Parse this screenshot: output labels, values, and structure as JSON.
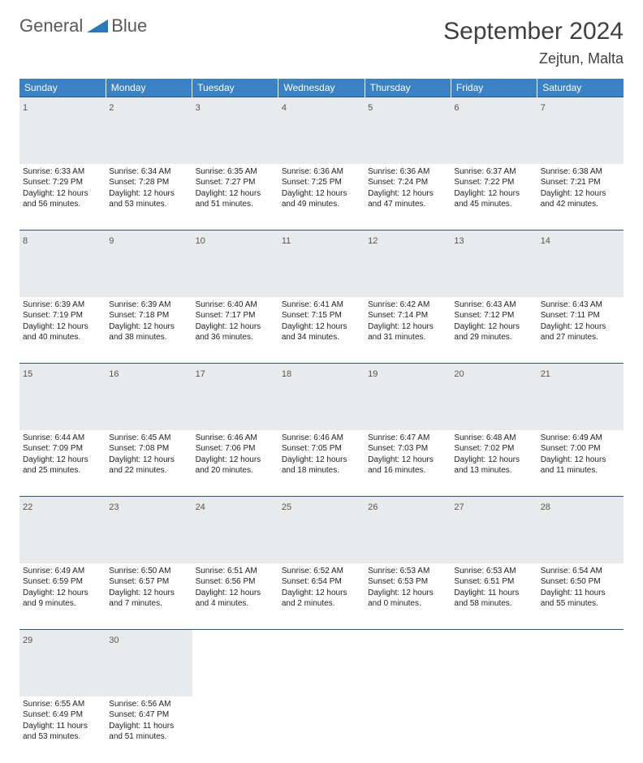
{
  "brand": {
    "name1": "General",
    "name2": "Blue",
    "triangle_color": "#2a7ab9"
  },
  "title": "September 2024",
  "location": "Zejtun, Malta",
  "colors": {
    "header_bg": "#3b82c4",
    "header_text": "#ffffff",
    "daynum_bg": "#e9eaeb",
    "rule": "#2a5a8a",
    "body_text": "#222222",
    "title_text": "#404040"
  },
  "weekdays": [
    "Sunday",
    "Monday",
    "Tuesday",
    "Wednesday",
    "Thursday",
    "Friday",
    "Saturday"
  ],
  "weeks": [
    [
      {
        "n": "1",
        "sunrise": "6:33 AM",
        "sunset": "7:29 PM",
        "dl": "12 hours and 56 minutes."
      },
      {
        "n": "2",
        "sunrise": "6:34 AM",
        "sunset": "7:28 PM",
        "dl": "12 hours and 53 minutes."
      },
      {
        "n": "3",
        "sunrise": "6:35 AM",
        "sunset": "7:27 PM",
        "dl": "12 hours and 51 minutes."
      },
      {
        "n": "4",
        "sunrise": "6:36 AM",
        "sunset": "7:25 PM",
        "dl": "12 hours and 49 minutes."
      },
      {
        "n": "5",
        "sunrise": "6:36 AM",
        "sunset": "7:24 PM",
        "dl": "12 hours and 47 minutes."
      },
      {
        "n": "6",
        "sunrise": "6:37 AM",
        "sunset": "7:22 PM",
        "dl": "12 hours and 45 minutes."
      },
      {
        "n": "7",
        "sunrise": "6:38 AM",
        "sunset": "7:21 PM",
        "dl": "12 hours and 42 minutes."
      }
    ],
    [
      {
        "n": "8",
        "sunrise": "6:39 AM",
        "sunset": "7:19 PM",
        "dl": "12 hours and 40 minutes."
      },
      {
        "n": "9",
        "sunrise": "6:39 AM",
        "sunset": "7:18 PM",
        "dl": "12 hours and 38 minutes."
      },
      {
        "n": "10",
        "sunrise": "6:40 AM",
        "sunset": "7:17 PM",
        "dl": "12 hours and 36 minutes."
      },
      {
        "n": "11",
        "sunrise": "6:41 AM",
        "sunset": "7:15 PM",
        "dl": "12 hours and 34 minutes."
      },
      {
        "n": "12",
        "sunrise": "6:42 AM",
        "sunset": "7:14 PM",
        "dl": "12 hours and 31 minutes."
      },
      {
        "n": "13",
        "sunrise": "6:43 AM",
        "sunset": "7:12 PM",
        "dl": "12 hours and 29 minutes."
      },
      {
        "n": "14",
        "sunrise": "6:43 AM",
        "sunset": "7:11 PM",
        "dl": "12 hours and 27 minutes."
      }
    ],
    [
      {
        "n": "15",
        "sunrise": "6:44 AM",
        "sunset": "7:09 PM",
        "dl": "12 hours and 25 minutes."
      },
      {
        "n": "16",
        "sunrise": "6:45 AM",
        "sunset": "7:08 PM",
        "dl": "12 hours and 22 minutes."
      },
      {
        "n": "17",
        "sunrise": "6:46 AM",
        "sunset": "7:06 PM",
        "dl": "12 hours and 20 minutes."
      },
      {
        "n": "18",
        "sunrise": "6:46 AM",
        "sunset": "7:05 PM",
        "dl": "12 hours and 18 minutes."
      },
      {
        "n": "19",
        "sunrise": "6:47 AM",
        "sunset": "7:03 PM",
        "dl": "12 hours and 16 minutes."
      },
      {
        "n": "20",
        "sunrise": "6:48 AM",
        "sunset": "7:02 PM",
        "dl": "12 hours and 13 minutes."
      },
      {
        "n": "21",
        "sunrise": "6:49 AM",
        "sunset": "7:00 PM",
        "dl": "12 hours and 11 minutes."
      }
    ],
    [
      {
        "n": "22",
        "sunrise": "6:49 AM",
        "sunset": "6:59 PM",
        "dl": "12 hours and 9 minutes."
      },
      {
        "n": "23",
        "sunrise": "6:50 AM",
        "sunset": "6:57 PM",
        "dl": "12 hours and 7 minutes."
      },
      {
        "n": "24",
        "sunrise": "6:51 AM",
        "sunset": "6:56 PM",
        "dl": "12 hours and 4 minutes."
      },
      {
        "n": "25",
        "sunrise": "6:52 AM",
        "sunset": "6:54 PM",
        "dl": "12 hours and 2 minutes."
      },
      {
        "n": "26",
        "sunrise": "6:53 AM",
        "sunset": "6:53 PM",
        "dl": "12 hours and 0 minutes."
      },
      {
        "n": "27",
        "sunrise": "6:53 AM",
        "sunset": "6:51 PM",
        "dl": "11 hours and 58 minutes."
      },
      {
        "n": "28",
        "sunrise": "6:54 AM",
        "sunset": "6:50 PM",
        "dl": "11 hours and 55 minutes."
      }
    ],
    [
      {
        "n": "29",
        "sunrise": "6:55 AM",
        "sunset": "6:49 PM",
        "dl": "11 hours and 53 minutes."
      },
      {
        "n": "30",
        "sunrise": "6:56 AM",
        "sunset": "6:47 PM",
        "dl": "11 hours and 51 minutes."
      },
      null,
      null,
      null,
      null,
      null
    ]
  ],
  "labels": {
    "sunrise": "Sunrise:",
    "sunset": "Sunset:",
    "daylight": "Daylight:"
  }
}
